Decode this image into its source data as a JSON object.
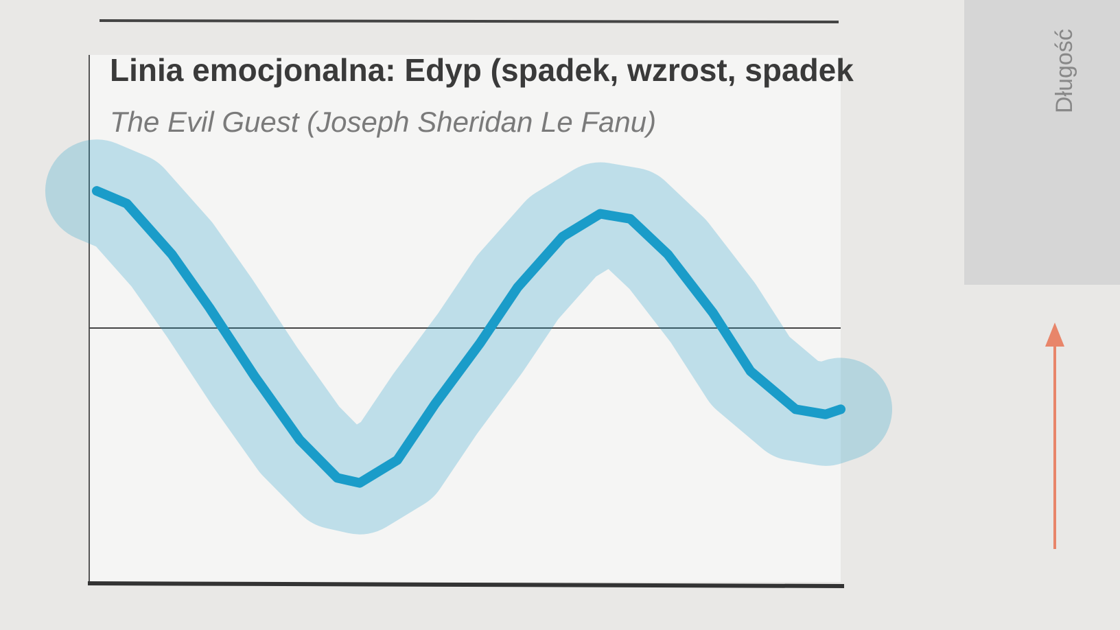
{
  "chart_data": {
    "type": "line",
    "title": "Linia emocjonalna: Edyp (spadek, wzrost, spadek",
    "subtitle": "The Evil Guest (Joseph Sheridan Le Fanu)",
    "side_label": "Długość",
    "x": [
      1,
      5,
      11,
      16,
      22,
      28,
      33,
      36,
      41,
      46,
      52,
      57,
      63,
      68,
      72,
      77,
      83,
      88,
      94,
      98,
      100
    ],
    "series": [
      {
        "color": "#1a9cc9",
        "values": [
          0.54,
          0.49,
          0.29,
          0.08,
          -0.19,
          -0.44,
          -0.59,
          -0.61,
          -0.52,
          -0.3,
          -0.06,
          0.16,
          0.36,
          0.45,
          0.43,
          0.29,
          0.06,
          -0.17,
          -0.32,
          -0.34,
          -0.32
        ]
      }
    ],
    "xlim": [
      0,
      100
    ],
    "ylim": [
      -1,
      1
    ]
  }
}
